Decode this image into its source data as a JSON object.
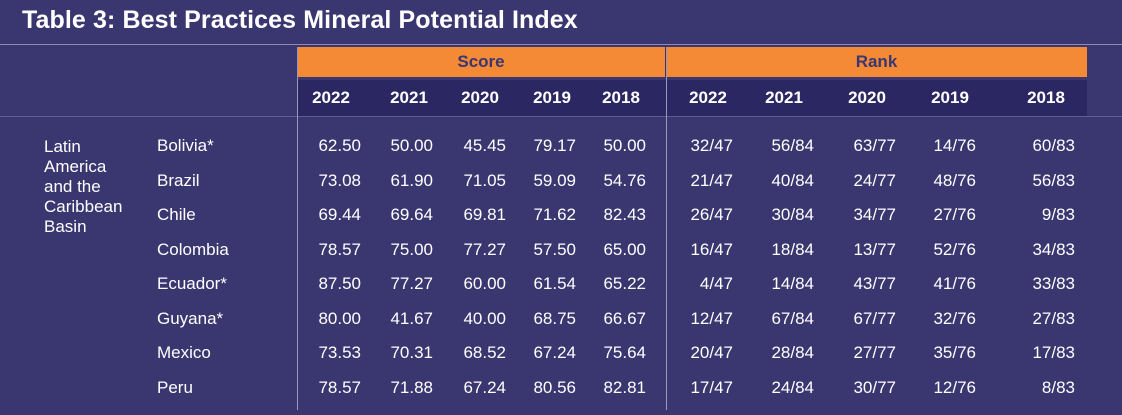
{
  "title": "Table 3: Best Practices Mineral Potential Index",
  "groups": {
    "score": "Score",
    "rank": "Rank"
  },
  "years": [
    "2022",
    "2021",
    "2020",
    "2019",
    "2018"
  ],
  "region": "Latin\nAmerica\nand the\nCaribbean\nBasin",
  "rows": [
    {
      "country": "Bolivia*",
      "score": [
        "62.50",
        "50.00",
        "45.45",
        "79.17",
        "50.00"
      ],
      "rank": [
        "32/47",
        "56/84",
        "63/77",
        "14/76",
        "60/83"
      ]
    },
    {
      "country": "Brazil",
      "score": [
        "73.08",
        "61.90",
        "71.05",
        "59.09",
        "54.76"
      ],
      "rank": [
        "21/47",
        "40/84",
        "24/77",
        "48/76",
        "56/83"
      ]
    },
    {
      "country": "Chile",
      "score": [
        "69.44",
        "69.64",
        "69.81",
        "71.62",
        "82.43"
      ],
      "rank": [
        "26/47",
        "30/84",
        "34/77",
        "27/76",
        "9/83"
      ]
    },
    {
      "country": "Colombia",
      "score": [
        "78.57",
        "75.00",
        "77.27",
        "57.50",
        "65.00"
      ],
      "rank": [
        "16/47",
        "18/84",
        "13/77",
        "52/76",
        "34/83"
      ]
    },
    {
      "country": "Ecuador*",
      "score": [
        "87.50",
        "77.27",
        "60.00",
        "61.54",
        "65.22"
      ],
      "rank": [
        "4/47",
        "14/84",
        "43/77",
        "41/76",
        "33/83"
      ]
    },
    {
      "country": "Guyana*",
      "score": [
        "80.00",
        "41.67",
        "40.00",
        "68.75",
        "66.67"
      ],
      "rank": [
        "12/47",
        "67/84",
        "67/77",
        "32/76",
        "27/83"
      ]
    },
    {
      "country": "Mexico",
      "score": [
        "73.53",
        "70.31",
        "68.52",
        "67.24",
        "75.64"
      ],
      "rank": [
        "20/47",
        "28/84",
        "27/77",
        "35/76",
        "17/83"
      ]
    },
    {
      "country": "Peru",
      "score": [
        "78.57",
        "71.88",
        "67.24",
        "80.56",
        "82.81"
      ],
      "rank": [
        "17/47",
        "24/84",
        "30/77",
        "12/76",
        "8/83"
      ]
    }
  ]
}
